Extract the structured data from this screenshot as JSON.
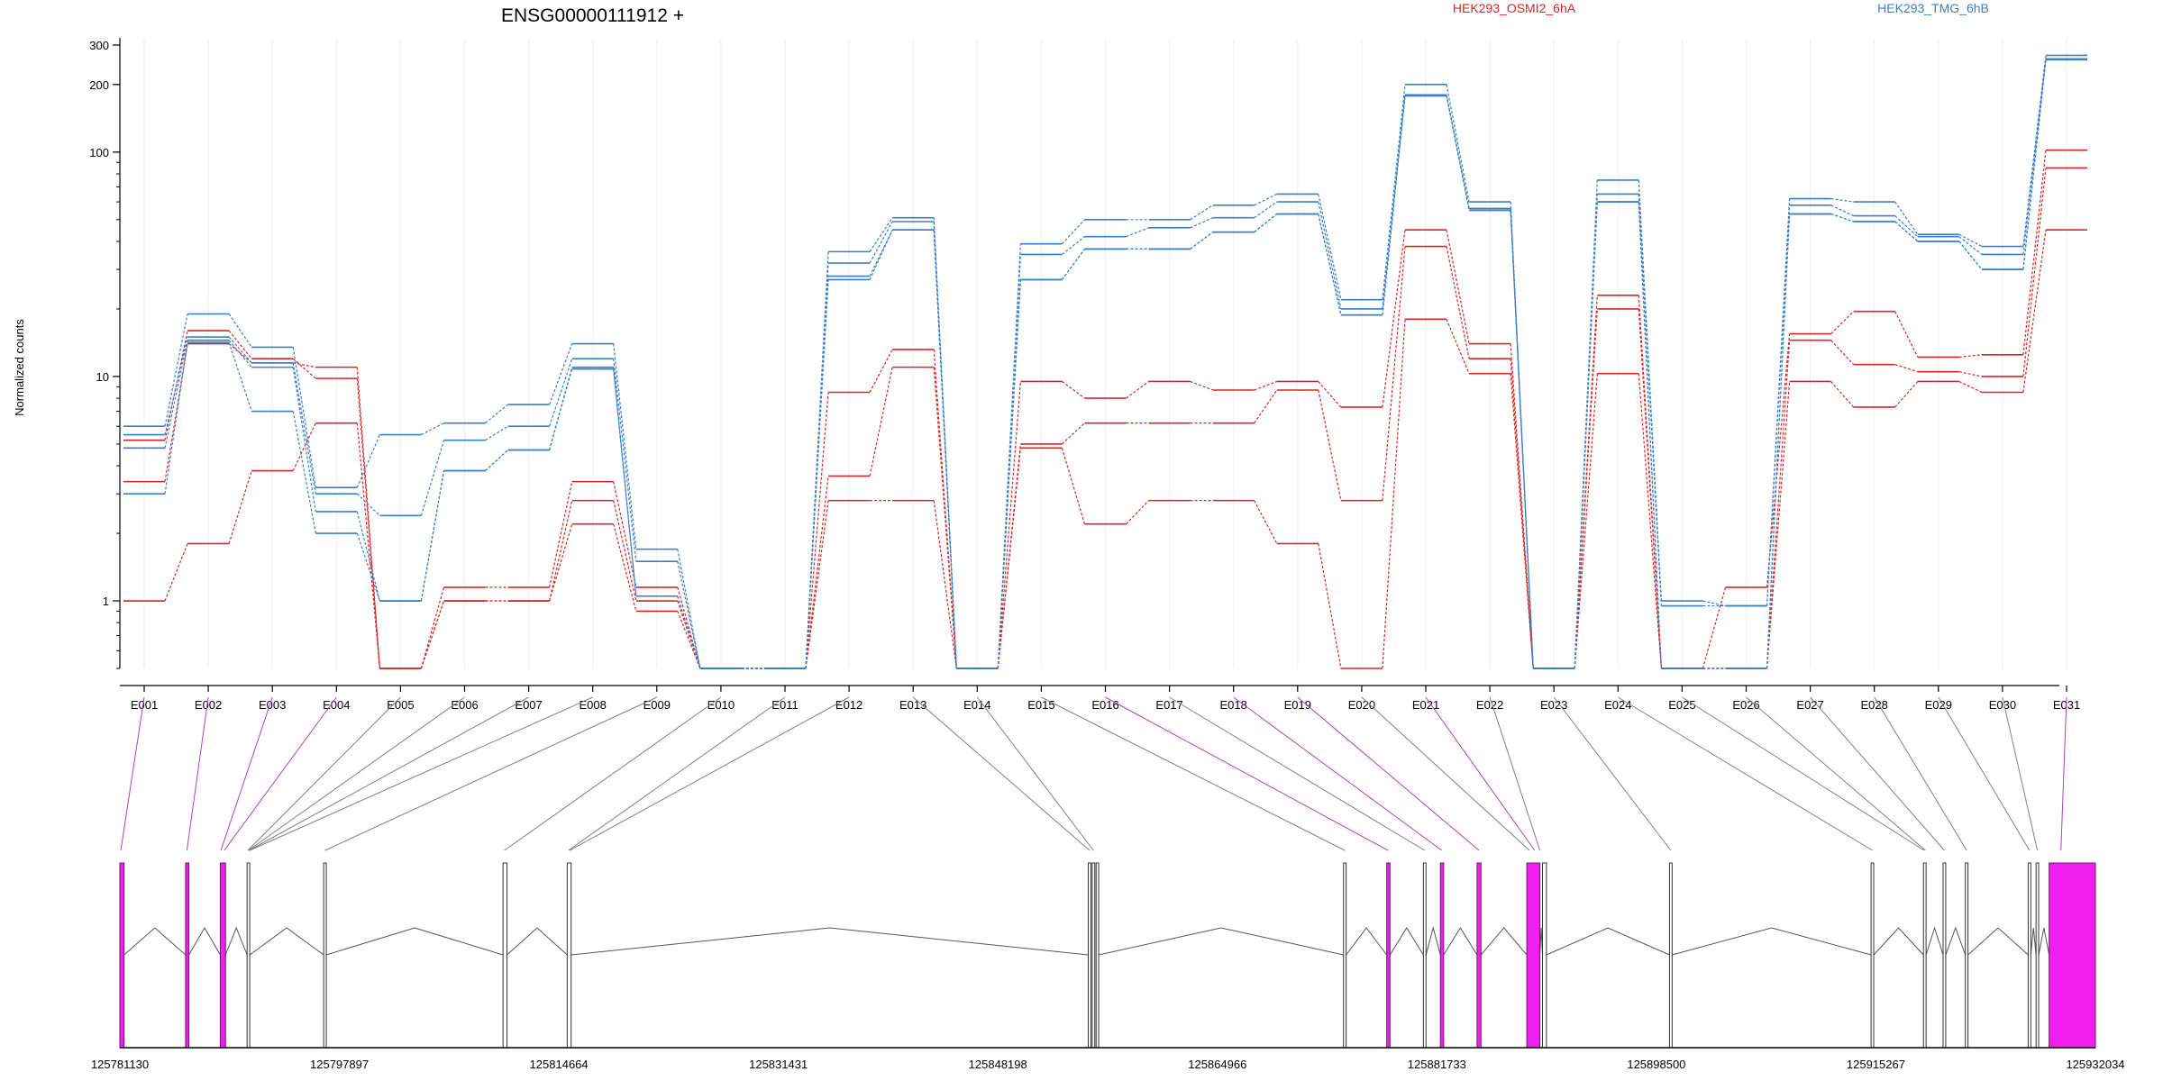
{
  "chart_data": {
    "type": "line",
    "title": "ENSG00000111912 +",
    "ylabel": "Normalized counts",
    "xlabel": "",
    "y_scale": "log",
    "y_ticks": [
      1,
      10,
      100,
      200,
      300
    ],
    "ylim": [
      0.5,
      300
    ],
    "categories": [
      "E001",
      "E002",
      "E003",
      "E004",
      "E005",
      "E006",
      "E007",
      "E008",
      "E009",
      "E010",
      "E011",
      "E012",
      "E013",
      "E014",
      "E015",
      "E016",
      "E017",
      "E018",
      "E019",
      "E020",
      "E021",
      "E022",
      "E023",
      "E024",
      "E025",
      "E026",
      "E027",
      "E028",
      "E029",
      "E030",
      "E031"
    ],
    "legend": [
      {
        "name": "HEK293_OSMI2_6hA",
        "color": "#d62728"
      },
      {
        "name": "HEK293_TMG_6hB",
        "color": "#3a7fc4"
      }
    ],
    "series": [
      {
        "group": 0,
        "color": "#d62728",
        "values": [
          5.2,
          16,
          12,
          9.8,
          0.5,
          1.15,
          1.15,
          3.4,
          1.15,
          0.5,
          0.5,
          8.5,
          13.2,
          0.5,
          9.5,
          8,
          9.5,
          8.7,
          9.5,
          7.3,
          45,
          14,
          0.5,
          23,
          0.5,
          1.15,
          15.5,
          19.5,
          12.2,
          12.5,
          102
        ]
      },
      {
        "group": 0,
        "color": "#d62728",
        "values": [
          3.4,
          14,
          11.5,
          11,
          0.5,
          1,
          1,
          2.8,
          1,
          0.5,
          0.5,
          3.6,
          11,
          0.5,
          5,
          6.2,
          6.2,
          6.2,
          8.7,
          2.8,
          38,
          12,
          0.5,
          20,
          0.5,
          0.5,
          14.5,
          11.3,
          10.5,
          10,
          85
        ]
      },
      {
        "group": 0,
        "color": "#d62728",
        "values": [
          1,
          1.8,
          3.8,
          6.2,
          0.5,
          1,
          1,
          2.2,
          0.9,
          0.5,
          0.5,
          2.8,
          2.8,
          0.5,
          4.8,
          2.2,
          2.8,
          2.8,
          1.8,
          0.5,
          18,
          10.3,
          0.5,
          10.3,
          0.5,
          0.5,
          9.5,
          7.3,
          9.5,
          8.5,
          45
        ]
      },
      {
        "group": 1,
        "color": "#3a7fc4",
        "values": [
          6,
          19,
          13.5,
          3.2,
          5.5,
          6.2,
          7.5,
          14,
          1.7,
          0.5,
          0.5,
          36,
          51,
          0.5,
          39,
          50,
          50,
          58,
          65,
          22,
          200,
          60,
          0.5,
          75,
          1,
          0.95,
          62,
          60,
          43,
          38,
          270
        ]
      },
      {
        "group": 1,
        "color": "#3a7fc4",
        "values": [
          5.5,
          15,
          11.5,
          3,
          2.4,
          5.2,
          6,
          12,
          1.5,
          0.5,
          0.5,
          32,
          49,
          0.5,
          35,
          42,
          46,
          51,
          60,
          20,
          180,
          56,
          0.5,
          65,
          0.95,
          0.95,
          58,
          52,
          42,
          35,
          260
        ]
      },
      {
        "group": 1,
        "color": "#3a7fc4",
        "values": [
          4.8,
          14.5,
          11,
          2.5,
          1,
          3.8,
          4.7,
          11,
          1.05,
          0.5,
          0.5,
          28,
          45,
          0.5,
          27,
          37,
          37,
          44,
          53,
          18.8,
          180,
          56,
          0.5,
          60,
          0.5,
          0.5,
          53,
          49,
          40,
          30,
          260
        ]
      },
      {
        "group": 1,
        "color": "#3a7fc4",
        "values": [
          3,
          14.2,
          7,
          2,
          1,
          3.8,
          4.7,
          10.8,
          1.05,
          0.5,
          0.5,
          27,
          45,
          0.5,
          27,
          37,
          37,
          44,
          53,
          18.8,
          178,
          55,
          0.5,
          60,
          0.5,
          0.5,
          53,
          49,
          40,
          30,
          258
        ]
      }
    ],
    "gene_model": {
      "coord_ticks": [
        "125781130",
        "125797897",
        "125814664",
        "125831431",
        "125848198",
        "125864966",
        "125881733",
        "125898500",
        "125915267",
        "125932034"
      ],
      "coord_range": [
        125781130,
        125932034
      ],
      "exons": [
        {
          "start": 125781130,
          "end": 125781450,
          "highlight": true
        },
        {
          "start": 125786150,
          "end": 125786400,
          "highlight": true
        },
        {
          "start": 125788800,
          "end": 125789200,
          "highlight": true
        },
        {
          "start": 125790850,
          "end": 125791050,
          "highlight": false
        },
        {
          "start": 125796700,
          "end": 125796900,
          "highlight": false
        },
        {
          "start": 125810400,
          "end": 125810700,
          "highlight": false
        },
        {
          "start": 125815300,
          "end": 125815600,
          "highlight": false
        },
        {
          "start": 125855100,
          "end": 125855300,
          "highlight": false
        },
        {
          "start": 125855400,
          "end": 125855600,
          "highlight": false
        },
        {
          "start": 125855700,
          "end": 125855900,
          "highlight": false
        },
        {
          "start": 125874600,
          "end": 125874800,
          "highlight": false
        },
        {
          "start": 125877900,
          "end": 125878150,
          "highlight": true
        },
        {
          "start": 125880700,
          "end": 125880900,
          "highlight": false
        },
        {
          "start": 125882000,
          "end": 125882250,
          "highlight": true
        },
        {
          "start": 125884800,
          "end": 125885100,
          "highlight": true
        },
        {
          "start": 125888600,
          "end": 125889600,
          "highlight": true
        },
        {
          "start": 125889800,
          "end": 125890100,
          "highlight": false
        },
        {
          "start": 125899500,
          "end": 125899700,
          "highlight": false
        },
        {
          "start": 125914900,
          "end": 125915100,
          "highlight": false
        },
        {
          "start": 125918900,
          "end": 125919100,
          "highlight": false
        },
        {
          "start": 125920400,
          "end": 125920600,
          "highlight": false
        },
        {
          "start": 125922100,
          "end": 125922300,
          "highlight": false
        },
        {
          "start": 125926900,
          "end": 125927100,
          "highlight": false
        },
        {
          "start": 125927500,
          "end": 125927700,
          "highlight": false
        },
        {
          "start": 125928500,
          "end": 125932034,
          "highlight": true
        }
      ],
      "connectors": [
        {
          "bin": 0,
          "coord": 125781200,
          "highlight": true
        },
        {
          "bin": 1,
          "coord": 125786250,
          "highlight": true
        },
        {
          "bin": 2,
          "coord": 125788850,
          "highlight": true
        },
        {
          "bin": 3,
          "coord": 125789100,
          "highlight": true
        },
        {
          "bin": 4,
          "coord": 125790900,
          "highlight": false
        },
        {
          "bin": 5,
          "coord": 125790950,
          "highlight": false
        },
        {
          "bin": 6,
          "coord": 125791000,
          "highlight": false
        },
        {
          "bin": 7,
          "coord": 125791050,
          "highlight": false
        },
        {
          "bin": 8,
          "coord": 125796800,
          "highlight": false
        },
        {
          "bin": 9,
          "coord": 125810500,
          "highlight": false
        },
        {
          "bin": 10,
          "coord": 125815400,
          "highlight": false
        },
        {
          "bin": 11,
          "coord": 125815500,
          "highlight": false
        },
        {
          "bin": 12,
          "coord": 125855200,
          "highlight": false
        },
        {
          "bin": 13,
          "coord": 125855500,
          "highlight": false
        },
        {
          "bin": 14,
          "coord": 125874700,
          "highlight": false
        },
        {
          "bin": 15,
          "coord": 125878000,
          "highlight": true
        },
        {
          "bin": 16,
          "coord": 125880800,
          "highlight": false
        },
        {
          "bin": 17,
          "coord": 125882100,
          "highlight": true
        },
        {
          "bin": 18,
          "coord": 125884950,
          "highlight": true
        },
        {
          "bin": 19,
          "coord": 125888800,
          "highlight": false
        },
        {
          "bin": 20,
          "coord": 125889200,
          "highlight": true
        },
        {
          "bin": 21,
          "coord": 125889600,
          "highlight": false
        },
        {
          "bin": 22,
          "coord": 125899600,
          "highlight": false
        },
        {
          "bin": 23,
          "coord": 125915000,
          "highlight": false
        },
        {
          "bin": 24,
          "coord": 125918950,
          "highlight": false
        },
        {
          "bin": 25,
          "coord": 125919050,
          "highlight": false
        },
        {
          "bin": 26,
          "coord": 125920500,
          "highlight": false
        },
        {
          "bin": 27,
          "coord": 125922200,
          "highlight": false
        },
        {
          "bin": 28,
          "coord": 125927000,
          "highlight": false
        },
        {
          "bin": 29,
          "coord": 125927600,
          "highlight": false
        },
        {
          "bin": 30,
          "coord": 125929400,
          "highlight": true
        }
      ]
    },
    "colors": {
      "highlight_exon": "#f01ff0",
      "highlight_connector": "#b040c0",
      "plain_connector": "#808080"
    }
  }
}
